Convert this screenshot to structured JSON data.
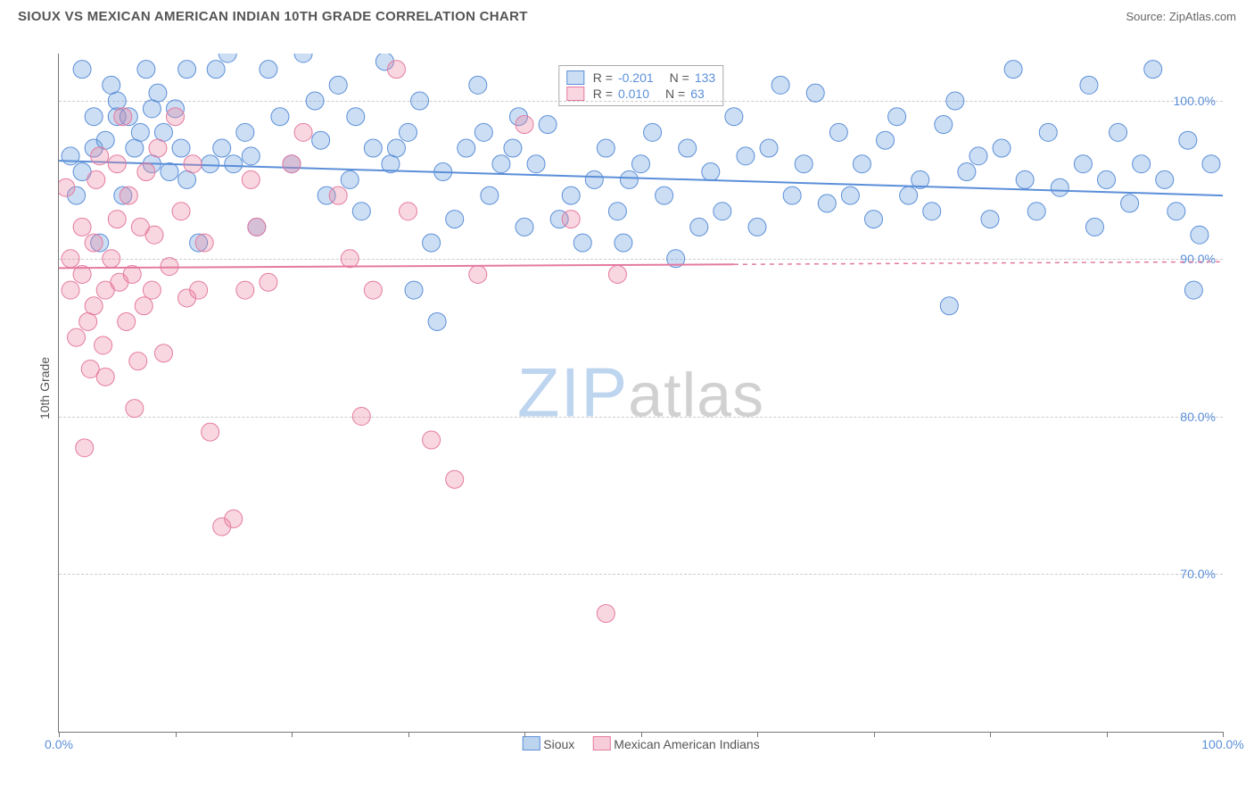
{
  "header": {
    "title": "SIOUX VS MEXICAN AMERICAN INDIAN 10TH GRADE CORRELATION CHART",
    "source": "Source: ZipAtlas.com"
  },
  "chart": {
    "type": "scatter",
    "ylabel": "10th Grade",
    "xlim": [
      0,
      100
    ],
    "ylim": [
      60,
      103
    ],
    "xtick_positions": [
      0,
      10,
      20,
      30,
      40,
      50,
      60,
      70,
      80,
      90,
      100
    ],
    "xtick_labels": {
      "0": "0.0%",
      "100": "100.0%"
    },
    "ytick_positions": [
      70,
      80,
      90,
      100
    ],
    "ytick_labels": {
      "70": "70.0%",
      "80": "80.0%",
      "90": "90.0%",
      "100": "100.0%"
    },
    "grid_color": "#cccccc",
    "background_color": "#ffffff",
    "axis_color": "#777777",
    "tick_label_color": "#5b8fd9",
    "watermark_text": "ZIPatlas",
    "series": [
      {
        "name": "Sioux",
        "color_fill": "rgba(108,160,220,0.35)",
        "color_stroke": "#5b8fd9",
        "trend": {
          "y_start": 96.2,
          "y_end": 94.0,
          "x_start": 0,
          "x_end": 100,
          "solid_until": 100
        },
        "R": "-0.201",
        "N": "133",
        "marker_radius": 10,
        "points": [
          [
            1,
            96.5
          ],
          [
            1.5,
            94
          ],
          [
            2,
            95.5
          ],
          [
            2,
            102
          ],
          [
            3,
            99
          ],
          [
            3,
            97
          ],
          [
            3.5,
            91
          ],
          [
            4,
            97.5
          ],
          [
            4.5,
            101
          ],
          [
            5,
            99
          ],
          [
            5,
            100
          ],
          [
            5.5,
            94
          ],
          [
            6,
            99
          ],
          [
            6.5,
            97
          ],
          [
            7,
            98
          ],
          [
            7.5,
            102
          ],
          [
            8,
            96
          ],
          [
            8,
            99.5
          ],
          [
            8.5,
            100.5
          ],
          [
            9,
            98
          ],
          [
            9.5,
            95.5
          ],
          [
            10,
            99.5
          ],
          [
            10.5,
            97
          ],
          [
            11,
            95
          ],
          [
            11,
            102
          ],
          [
            12,
            91
          ],
          [
            13,
            96
          ],
          [
            13.5,
            102
          ],
          [
            14,
            97
          ],
          [
            14.5,
            103
          ],
          [
            15,
            96
          ],
          [
            16,
            98
          ],
          [
            16.5,
            96.5
          ],
          [
            17,
            92
          ],
          [
            18,
            102
          ],
          [
            19,
            99
          ],
          [
            20,
            96
          ],
          [
            21,
            103
          ],
          [
            22,
            100
          ],
          [
            22.5,
            97.5
          ],
          [
            23,
            94
          ],
          [
            24,
            101
          ],
          [
            25,
            95
          ],
          [
            25.5,
            99
          ],
          [
            26,
            93
          ],
          [
            27,
            97
          ],
          [
            28,
            102.5
          ],
          [
            28.5,
            96
          ],
          [
            29,
            97
          ],
          [
            30,
            98
          ],
          [
            30.5,
            88
          ],
          [
            31,
            100
          ],
          [
            32,
            91
          ],
          [
            32.5,
            86
          ],
          [
            33,
            95.5
          ],
          [
            34,
            92.5
          ],
          [
            35,
            97
          ],
          [
            36,
            101
          ],
          [
            36.5,
            98
          ],
          [
            37,
            94
          ],
          [
            38,
            96
          ],
          [
            39,
            97
          ],
          [
            39.5,
            99
          ],
          [
            40,
            92
          ],
          [
            41,
            96
          ],
          [
            42,
            98.5
          ],
          [
            43,
            92.5
          ],
          [
            44,
            94
          ],
          [
            45,
            91
          ],
          [
            46,
            95
          ],
          [
            47,
            97
          ],
          [
            48,
            93
          ],
          [
            48.5,
            91
          ],
          [
            49,
            95
          ],
          [
            50,
            96
          ],
          [
            51,
            98
          ],
          [
            52,
            94
          ],
          [
            53,
            90
          ],
          [
            54,
            97
          ],
          [
            55,
            92
          ],
          [
            56,
            95.5
          ],
          [
            57,
            93
          ],
          [
            58,
            99
          ],
          [
            59,
            96.5
          ],
          [
            60,
            92
          ],
          [
            61,
            97
          ],
          [
            62,
            101
          ],
          [
            63,
            94
          ],
          [
            64,
            96
          ],
          [
            65,
            100.5
          ],
          [
            66,
            93.5
          ],
          [
            67,
            98
          ],
          [
            68,
            94
          ],
          [
            69,
            96
          ],
          [
            70,
            92.5
          ],
          [
            71,
            97.5
          ],
          [
            72,
            99
          ],
          [
            73,
            94
          ],
          [
            74,
            95
          ],
          [
            75,
            93
          ],
          [
            76,
            98.5
          ],
          [
            76.5,
            87
          ],
          [
            77,
            100
          ],
          [
            78,
            95.5
          ],
          [
            79,
            96.5
          ],
          [
            80,
            92.5
          ],
          [
            81,
            97
          ],
          [
            82,
            102
          ],
          [
            83,
            95
          ],
          [
            84,
            93
          ],
          [
            85,
            98
          ],
          [
            86,
            94.5
          ],
          [
            88,
            96
          ],
          [
            88.5,
            101
          ],
          [
            89,
            92
          ],
          [
            90,
            95
          ],
          [
            91,
            98
          ],
          [
            92,
            93.5
          ],
          [
            93,
            96
          ],
          [
            94,
            102
          ],
          [
            95,
            95
          ],
          [
            96,
            93
          ],
          [
            97,
            97.5
          ],
          [
            97.5,
            88
          ],
          [
            98,
            91.5
          ],
          [
            99,
            96
          ]
        ]
      },
      {
        "name": "Mexican American Indians",
        "color_fill": "rgba(235,130,160,0.32)",
        "color_stroke": "#e47aa0",
        "trend": {
          "y_start": 89.4,
          "y_end": 89.8,
          "x_start": 0,
          "x_end": 100,
          "solid_until": 58
        },
        "R": "0.010",
        "N": "63",
        "marker_radius": 10,
        "points": [
          [
            0.6,
            94.5
          ],
          [
            1,
            90
          ],
          [
            1,
            88
          ],
          [
            1.5,
            85
          ],
          [
            2,
            89
          ],
          [
            2,
            92
          ],
          [
            2.2,
            78
          ],
          [
            2.5,
            86
          ],
          [
            2.7,
            83
          ],
          [
            3,
            87
          ],
          [
            3,
            91
          ],
          [
            3.2,
            95
          ],
          [
            3.5,
            96.5
          ],
          [
            3.8,
            84.5
          ],
          [
            4,
            88
          ],
          [
            4,
            82.5
          ],
          [
            4.5,
            90
          ],
          [
            5,
            96
          ],
          [
            5,
            92.5
          ],
          [
            5.2,
            88.5
          ],
          [
            5.5,
            99
          ],
          [
            5.8,
            86
          ],
          [
            6,
            94
          ],
          [
            6.3,
            89
          ],
          [
            6.5,
            80.5
          ],
          [
            6.8,
            83.5
          ],
          [
            7,
            92
          ],
          [
            7.3,
            87
          ],
          [
            7.5,
            95.5
          ],
          [
            8,
            88
          ],
          [
            8.2,
            91.5
          ],
          [
            8.5,
            97
          ],
          [
            9,
            84
          ],
          [
            9.5,
            89.5
          ],
          [
            10,
            99
          ],
          [
            10.5,
            93
          ],
          [
            11,
            87.5
          ],
          [
            11.5,
            96
          ],
          [
            12,
            88
          ],
          [
            12.5,
            91
          ],
          [
            13,
            79
          ],
          [
            14,
            73
          ],
          [
            15,
            73.5
          ],
          [
            16,
            88
          ],
          [
            16.5,
            95
          ],
          [
            17,
            92
          ],
          [
            18,
            88.5
          ],
          [
            20,
            96
          ],
          [
            21,
            98
          ],
          [
            24,
            94
          ],
          [
            25,
            90
          ],
          [
            26,
            80
          ],
          [
            27,
            88
          ],
          [
            29,
            102
          ],
          [
            30,
            93
          ],
          [
            32,
            78.5
          ],
          [
            34,
            76
          ],
          [
            36,
            89
          ],
          [
            40,
            98.5
          ],
          [
            44,
            92.5
          ],
          [
            47,
            67.5
          ],
          [
            48,
            89
          ]
        ]
      }
    ],
    "legend_bottom": [
      {
        "swatch_fill": "rgba(108,160,220,0.45)",
        "swatch_stroke": "#5b8fd9",
        "label": "Sioux"
      },
      {
        "swatch_fill": "rgba(235,130,160,0.40)",
        "swatch_stroke": "#e47aa0",
        "label": "Mexican American Indians"
      }
    ]
  }
}
